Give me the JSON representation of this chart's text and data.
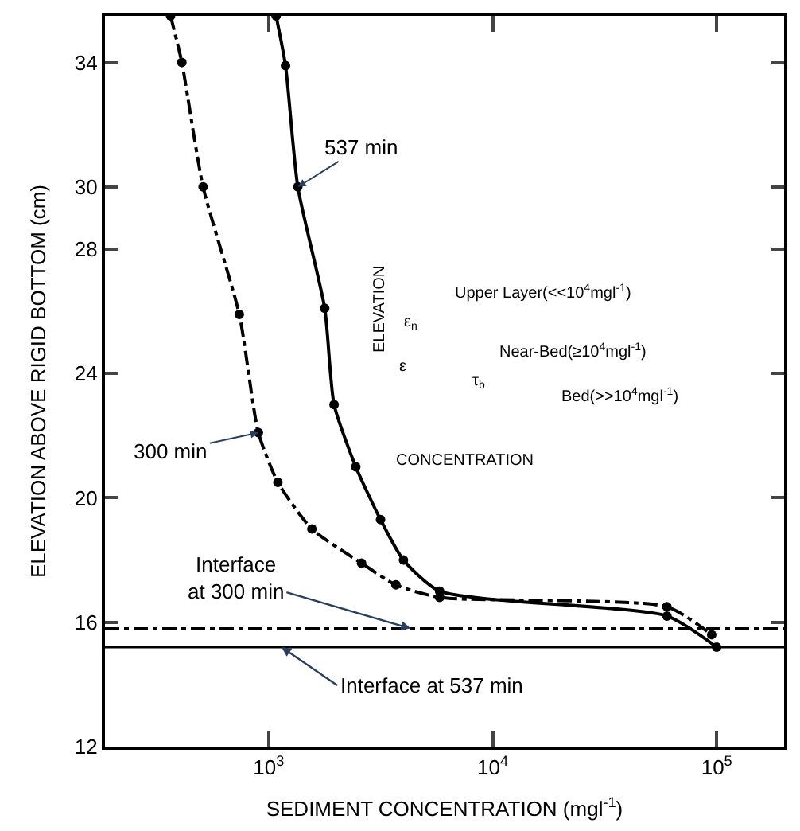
{
  "chart_data": {
    "type": "line",
    "xlabel": "SEDIMENT CONCENTRATION (mgl$^{-1}$)",
    "ylabel": "ELEVATION ABOVE RIGID BOTTOM (cm)",
    "log": "x",
    "marker": "circle",
    "legend": false,
    "xlim": [
      186,
      200000
    ],
    "xticks": [
      {
        "value": 1000,
        "label": "10$^{3}$"
      },
      {
        "value": 10000,
        "label": "10$^{4}$"
      },
      {
        "value": 100000,
        "label": "10$^{5}$"
      }
    ],
    "ylim": [
      12,
      35.5
    ],
    "yticks": [
      12,
      16,
      20,
      24,
      28,
      30,
      34
    ],
    "series": [
      {
        "name": "300 min",
        "color": "#000000",
        "line_style": "dashed",
        "x": [
          365,
          410,
          510,
          740,
          900,
          1100,
          1560,
          2600,
          3700,
          5800,
          60000,
          95000
        ],
        "values": [
          35.5,
          34,
          30,
          25.9,
          22.1,
          20.5,
          19.0,
          17.9,
          17.2,
          16.8,
          16.5,
          15.6
        ]
      },
      {
        "name": "537 min",
        "color": "#000000",
        "line_style": "solid",
        "x": [
          1080,
          1190,
          1350,
          1780,
          1960,
          2450,
          3160,
          4000,
          5800,
          60000,
          100000
        ],
        "values": [
          35.5,
          33.9,
          30,
          26.1,
          23.0,
          21.0,
          19.3,
          18.0,
          17.0,
          16.2,
          15.2
        ]
      }
    ],
    "ref_lines": [
      {
        "axis": "y",
        "value": 15.8,
        "label": "Interface at 300 min",
        "line_style": "dashed",
        "color": "#000000"
      },
      {
        "axis": "y",
        "value": 15.2,
        "label": "Interface at 537 min",
        "line_style": "solid",
        "color": "#000000"
      }
    ],
    "annotations": [
      "ELEVATION",
      "CONCENTRATION",
      "Upper Layer(<<10$^{4}$mgl$^{-1}$)",
      "Near-Bed(≥10$^{4}$mgl$^{-1}$)",
      "Bed(>>10$^{4}$mgl$^{-1}$)",
      "ε$_{n}$",
      "ε",
      "τ$_{b}$"
    ]
  }
}
